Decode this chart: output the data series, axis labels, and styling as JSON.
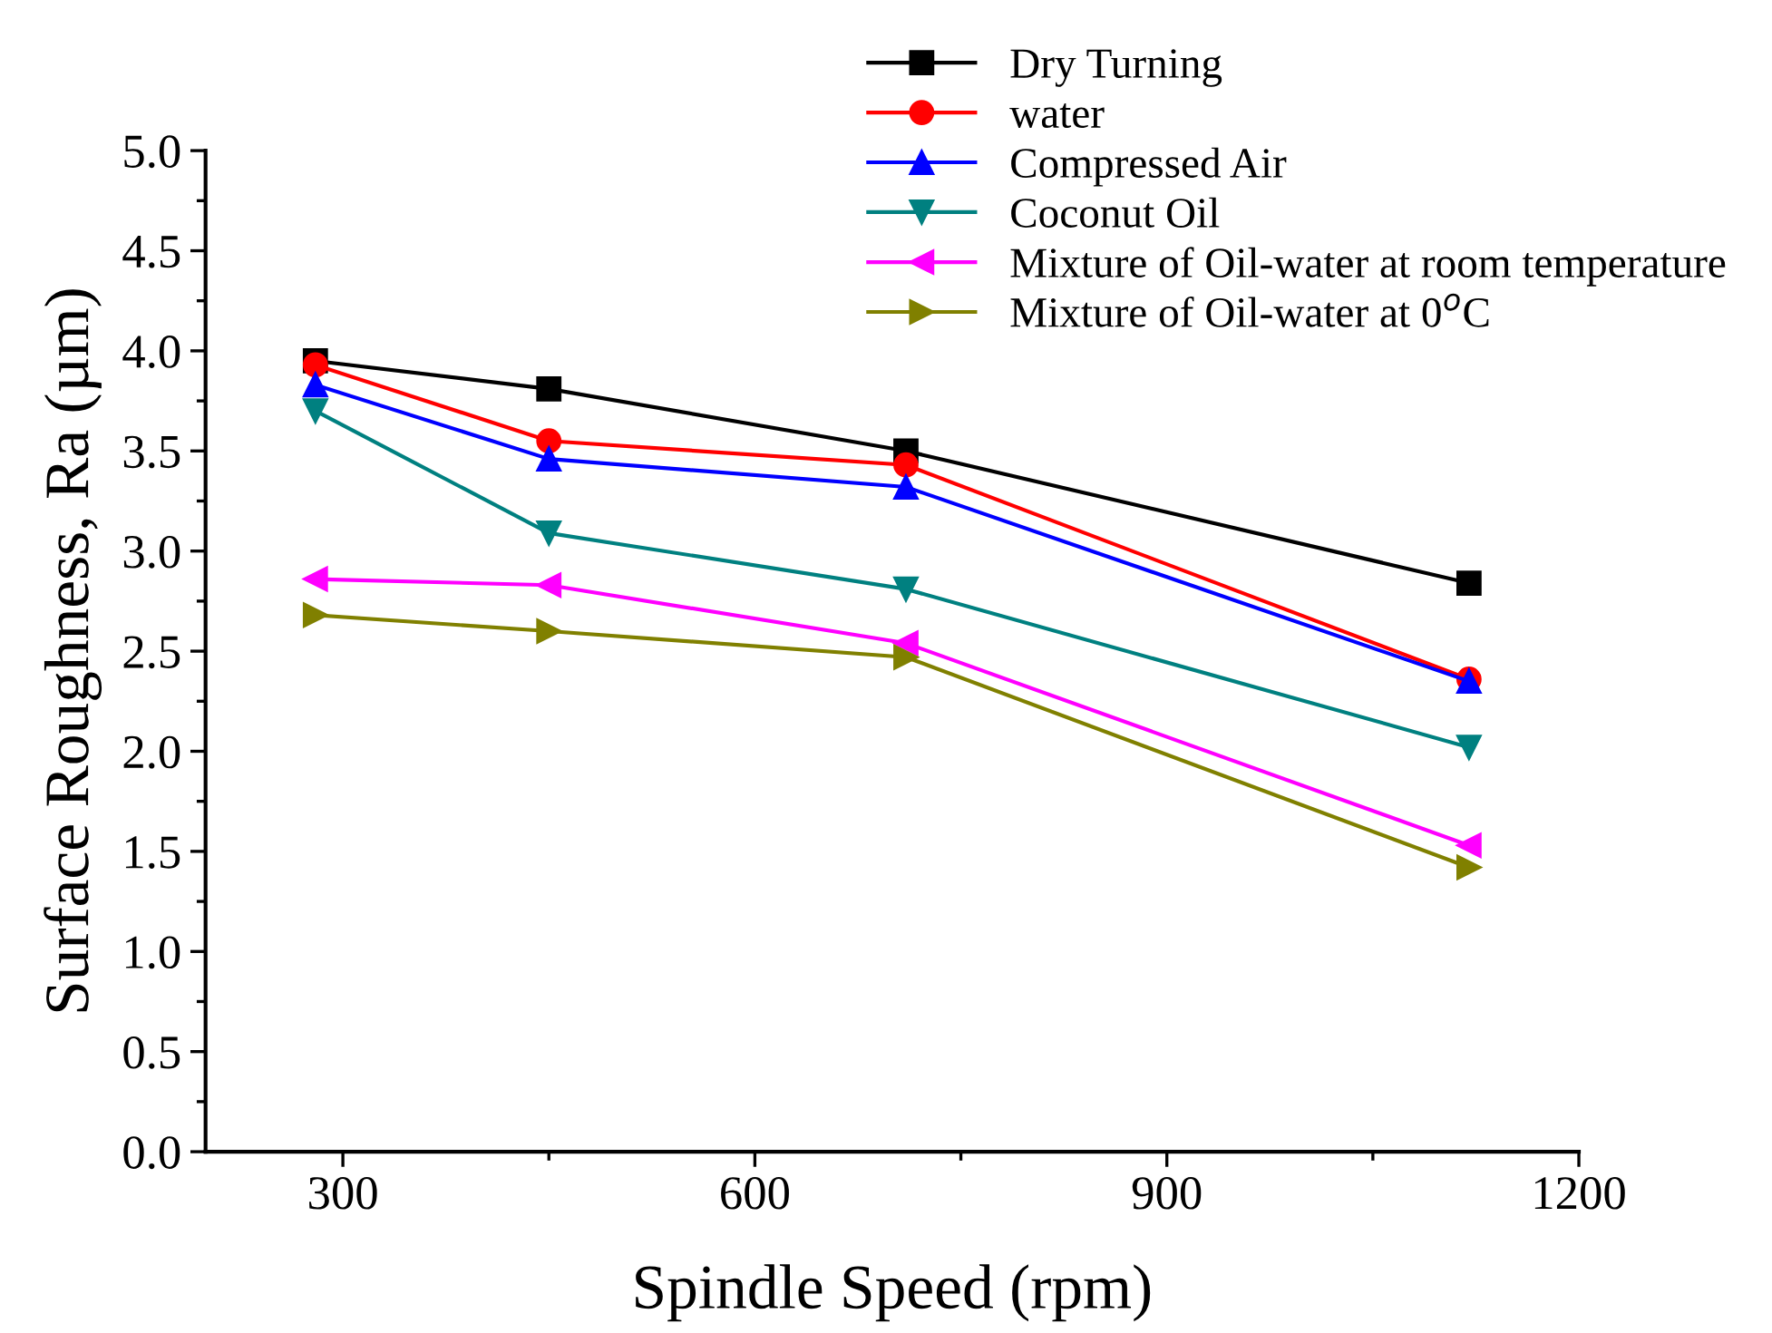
{
  "chart_data": {
    "type": "line",
    "xlabel": "Spindle Speed (rpm)",
    "ylabel": "Surface Roughness, Ra (µm)",
    "x": [
      280,
      450,
      710,
      1120
    ],
    "series": [
      {
        "name": "Dry Turning",
        "color": "#000000",
        "marker": "square",
        "values": [
          3.95,
          3.81,
          3.5,
          2.84
        ]
      },
      {
        "name": "water",
        "color": "#ff0000",
        "marker": "circle",
        "values": [
          3.93,
          3.55,
          3.43,
          2.36
        ]
      },
      {
        "name": "Compressed Air",
        "color": "#0000ff",
        "marker": "triangle",
        "values": [
          3.83,
          3.46,
          3.32,
          2.35
        ]
      },
      {
        "name": "Coconut Oil",
        "color": "#008080",
        "marker": "triangle-down",
        "values": [
          3.7,
          3.09,
          2.81,
          2.02
        ]
      },
      {
        "name": "Mixture of Oil-water at room temperature",
        "color": "#ff00ff",
        "marker": "triangle-left",
        "values": [
          2.86,
          2.83,
          2.54,
          1.53
        ]
      },
      {
        "name": "Mixture of Oil-water at 0$^{o}$C",
        "color": "#808000",
        "marker": "triangle-right",
        "values": [
          2.68,
          2.6,
          2.47,
          1.42
        ]
      }
    ],
    "xlim": [
      200,
      1200
    ],
    "xticks": [
      300,
      {
        "value": 450,
        "label": null
      },
      600,
      {
        "value": 750,
        "label": null
      },
      900,
      {
        "value": 1050,
        "label": null
      },
      1200
    ],
    "ylim": [
      0,
      5
    ],
    "yticks": [
      {
        "value": 0,
        "label": "0.0"
      },
      {
        "value": 0.25,
        "label": null
      },
      0.5,
      {
        "value": 0.75,
        "label": null
      },
      {
        "value": 1,
        "label": "1.0"
      },
      {
        "value": 1.25,
        "label": null
      },
      1.5,
      {
        "value": 1.75,
        "label": null
      },
      {
        "value": 2,
        "label": "2.0"
      },
      {
        "value": 2.25,
        "label": null
      },
      2.5,
      {
        "value": 2.75,
        "label": null
      },
      {
        "value": 3,
        "label": "3.0"
      },
      {
        "value": 3.25,
        "label": null
      },
      3.5,
      {
        "value": 3.75,
        "label": null
      },
      {
        "value": 4,
        "label": "4.0"
      },
      {
        "value": 4.25,
        "label": null
      },
      4.5,
      {
        "value": 4.75,
        "label": null
      },
      {
        "value": 5,
        "label": "5.0"
      }
    ],
    "grid": false,
    "legend": "top right",
    "line_style": "solid"
  }
}
